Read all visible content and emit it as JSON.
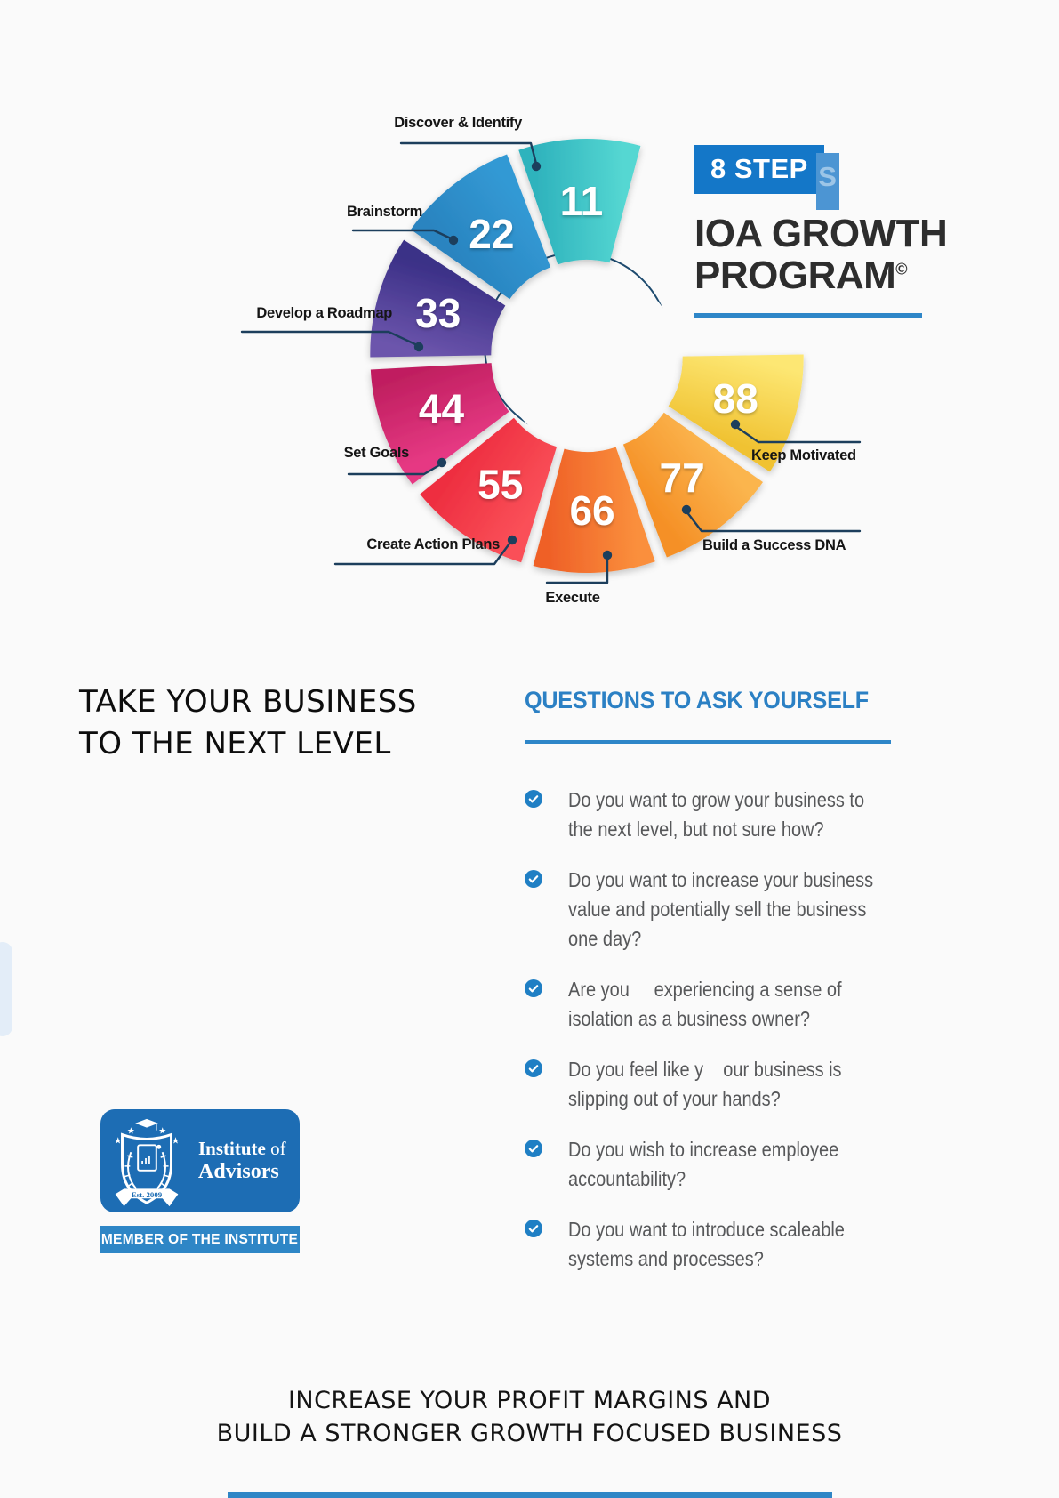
{
  "header": {
    "badge": "8 STEP",
    "badge_shadow_letter": "S",
    "title_line1": "IOA GROWTH",
    "title_line2": "PROGRAM",
    "title_superscript": "©",
    "accent_color": "#2e86c8",
    "badge_color": "#1477c8"
  },
  "chart_data": {
    "type": "pie",
    "subtype": "exploded-donut",
    "title": "8 STEP IOA GROWTH PROGRAM",
    "legend_position": "around",
    "start_angle_deg": 74,
    "segment_sweep_deg": 36,
    "open_gap": "upper-right (~72 degrees)",
    "direction": "counterclockwise from top",
    "segments": [
      {
        "value": 11,
        "label": "Discover & Identify"
      },
      {
        "value": 22,
        "label": "Brainstorm"
      },
      {
        "value": 33,
        "label": "Develop a Roadmap"
      },
      {
        "value": 44,
        "label": "Set Goals"
      },
      {
        "value": 55,
        "label": "Create Action Plans"
      },
      {
        "value": 66,
        "label": "Execute"
      },
      {
        "value": 77,
        "label": "Build a Success DNA"
      },
      {
        "value": 88,
        "label": "Keep Motivated"
      }
    ],
    "colors": [
      [
        "#55d7d2",
        "#2fb3bd"
      ],
      [
        "#3299d4",
        "#2a84c0"
      ],
      [
        "#3b3087",
        "#6c55ac"
      ],
      [
        "#c01f60",
        "#e63983"
      ],
      [
        "#ee2f41",
        "#fa5058"
      ],
      [
        "#ef6128",
        "#fa8f3c"
      ],
      [
        "#f59026",
        "#fbb54e"
      ],
      [
        "#f0c232",
        "#fde773"
      ]
    ],
    "connector_color": "#1c3e5c",
    "number_color": "#ffffff"
  },
  "intro": {
    "heading": "TAKE YOUR BUSINESS\nTO THE NEXT LEVEL"
  },
  "questions": {
    "heading": "QUESTIONS TO ASK YOURSELF",
    "accent_color": "#2e86c8",
    "items": [
      {
        "text": "Do you want to grow your business to\nthe next level, but not sure how?"
      },
      {
        "text": "Do you want to increase your business\nvalue and potentially sell the business\none day?"
      },
      {
        "text": "Are you     experiencing a sense of\nisolation as a business owner?"
      },
      {
        "text": "Do you feel like y    our business is\nslipping out of your hands?"
      },
      {
        "text": "Do you wish to increase employee\naccountability?"
      },
      {
        "text": "Do you want to introduce scaleable\nsystems and processes?"
      }
    ]
  },
  "logo": {
    "org_bold": "Institute",
    "org_rest": " of",
    "org_line2": "Advisors",
    "established": "Est. 2009",
    "member_bar": "MEMBER OF THE INSTITUTE",
    "card_color": "#1d6db4"
  },
  "footer": {
    "line1": "INCREASE YOUR PROFIT MARGINS AND",
    "line2": "BUILD A STRONGER GROWTH FOCUSED BUSINESS"
  }
}
